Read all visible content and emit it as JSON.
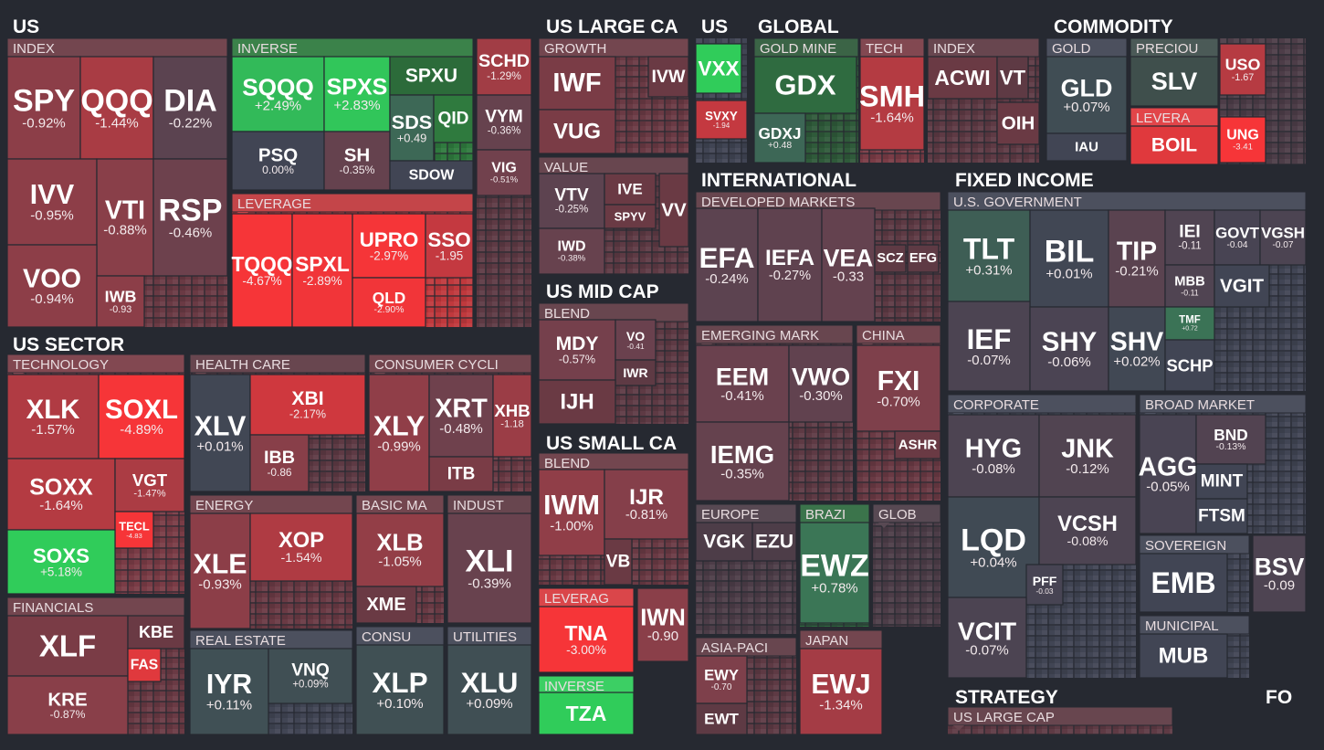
{
  "sections": [
    {
      "title": "US",
      "groups": [
        {
          "label": "INDEX",
          "tiles": [
            {
              "ticker": "SPY",
              "change": "-0.92%"
            },
            {
              "ticker": "QQQ",
              "change": "-1.44%"
            },
            {
              "ticker": "DIA",
              "change": "-0.22%"
            },
            {
              "ticker": "IVV",
              "change": "-0.95%"
            },
            {
              "ticker": "VTI",
              "change": "-0.88%"
            },
            {
              "ticker": "RSP",
              "change": "-0.46%"
            },
            {
              "ticker": "VOO",
              "change": "-0.94%"
            },
            {
              "ticker": "IWB",
              "change": "-0.93"
            }
          ]
        },
        {
          "label": "INVERSE",
          "tiles": [
            {
              "ticker": "SQQQ",
              "change": "+2.49%"
            },
            {
              "ticker": "SPXS",
              "change": "+2.83%"
            },
            {
              "ticker": "SPXU"
            },
            {
              "ticker": "PSQ",
              "change": "0.00%"
            },
            {
              "ticker": "SH",
              "change": "-0.35%"
            },
            {
              "ticker": "SDS",
              "change": "+0.49"
            },
            {
              "ticker": "QID"
            },
            {
              "ticker": "SDOW"
            }
          ]
        },
        {
          "label": "LEVERAGE",
          "tiles": [
            {
              "ticker": "TQQQ",
              "change": "-4.67%"
            },
            {
              "ticker": "SPXL",
              "change": "-2.89%"
            },
            {
              "ticker": "UPRO",
              "change": "-2.97%"
            },
            {
              "ticker": "SSO",
              "change": "-1.95"
            },
            {
              "ticker": "QLD",
              "change": "-2.90%"
            }
          ]
        },
        {
          "tiles": [
            {
              "ticker": "SCHD",
              "change": "-1.29%"
            },
            {
              "ticker": "VYM",
              "change": "-0.36%"
            },
            {
              "ticker": "VIG",
              "change": "-0.51%"
            }
          ]
        }
      ]
    },
    {
      "title": "US SECTOR",
      "groups": [
        {
          "label": "TECHNOLOGY",
          "tiles": [
            {
              "ticker": "XLK",
              "change": "-1.57%"
            },
            {
              "ticker": "SOXL",
              "change": "-4.89%"
            },
            {
              "ticker": "SOXX",
              "change": "-1.64%"
            },
            {
              "ticker": "VGT",
              "change": "-1.47%"
            },
            {
              "ticker": "TECL",
              "change": "-4.83"
            },
            {
              "ticker": "SOXS",
              "change": "+5.18%"
            }
          ]
        },
        {
          "label": "FINANCIALS",
          "tiles": [
            {
              "ticker": "XLF"
            },
            {
              "ticker": "KRE",
              "change": "-0.87%"
            },
            {
              "ticker": "KBE"
            },
            {
              "ticker": "FAS"
            }
          ]
        },
        {
          "label": "HEALTH CARE",
          "tiles": [
            {
              "ticker": "XLV",
              "change": "+0.01%"
            },
            {
              "ticker": "XBI",
              "change": "-2.17%"
            },
            {
              "ticker": "IBB",
              "change": "-0.86"
            }
          ]
        },
        {
          "label": "CONSUMER CYCLI",
          "tiles": [
            {
              "ticker": "XLY",
              "change": "-0.99%"
            },
            {
              "ticker": "XRT",
              "change": "-0.48%"
            },
            {
              "ticker": "XHB",
              "change": "-1.18"
            },
            {
              "ticker": "ITB"
            }
          ]
        },
        {
          "label": "ENERGY",
          "tiles": [
            {
              "ticker": "XLE",
              "change": "-0.93%"
            },
            {
              "ticker": "XOP",
              "change": "-1.54%"
            }
          ]
        },
        {
          "label": "BASIC MA",
          "tiles": [
            {
              "ticker": "XLB",
              "change": "-1.05%"
            },
            {
              "ticker": "XME"
            }
          ]
        },
        {
          "label": "INDUST",
          "tiles": [
            {
              "ticker": "XLI",
              "change": "-0.39%"
            }
          ]
        },
        {
          "label": "REAL ESTATE",
          "tiles": [
            {
              "ticker": "IYR",
              "change": "+0.11%"
            },
            {
              "ticker": "VNQ",
              "change": "+0.09%"
            }
          ]
        },
        {
          "label": "CONSU",
          "tiles": [
            {
              "ticker": "XLP",
              "change": "+0.10%"
            }
          ]
        },
        {
          "label": "UTILITIES",
          "tiles": [
            {
              "ticker": "XLU",
              "change": "+0.09%"
            }
          ]
        }
      ]
    },
    {
      "title": "US LARGE CA",
      "groups": [
        {
          "label": "GROWTH",
          "tiles": [
            {
              "ticker": "IWF"
            },
            {
              "ticker": "VUG"
            },
            {
              "ticker": "IVW"
            }
          ]
        },
        {
          "label": "VALUE",
          "tiles": [
            {
              "ticker": "VTV",
              "change": "-0.25%"
            },
            {
              "ticker": "IVE"
            },
            {
              "ticker": "SPYV"
            },
            {
              "ticker": "VV"
            },
            {
              "ticker": "IWD",
              "change": "-0.38%"
            }
          ]
        }
      ]
    },
    {
      "title": "US MID CAP",
      "groups": [
        {
          "label": "BLEND",
          "tiles": [
            {
              "ticker": "MDY",
              "change": "-0.57%"
            },
            {
              "ticker": "VO",
              "change": "-0.41"
            },
            {
              "ticker": "IWR"
            },
            {
              "ticker": "IJH"
            }
          ]
        }
      ]
    },
    {
      "title": "US SMALL CA",
      "groups": [
        {
          "label": "BLEND",
          "tiles": [
            {
              "ticker": "IWM",
              "change": "-1.00%"
            },
            {
              "ticker": "IJR",
              "change": "-0.81%"
            },
            {
              "ticker": "VB"
            }
          ]
        },
        {
          "label": "LEVERAG",
          "tiles": [
            {
              "ticker": "TNA",
              "change": "-3.00%"
            }
          ]
        },
        {
          "tiles": [
            {
              "ticker": "IWN",
              "change": "-0.90"
            }
          ]
        },
        {
          "label": "INVERSE",
          "tiles": [
            {
              "ticker": "TZA"
            }
          ]
        }
      ]
    },
    {
      "title": "US",
      "groups": [
        {
          "tiles": [
            {
              "ticker": "VXX"
            },
            {
              "ticker": "SVXY",
              "change": "-1.94"
            }
          ]
        }
      ]
    },
    {
      "title": "GLOBAL",
      "groups": [
        {
          "label": "GOLD MINE",
          "tiles": [
            {
              "ticker": "GDX"
            },
            {
              "ticker": "GDXJ",
              "change": "+0.48"
            }
          ]
        },
        {
          "label": "TECH",
          "tiles": [
            {
              "ticker": "SMH",
              "change": "-1.64%"
            }
          ]
        },
        {
          "label": "INDEX",
          "tiles": [
            {
              "ticker": "ACWI"
            },
            {
              "ticker": "VT"
            },
            {
              "ticker": "OIH"
            }
          ]
        }
      ]
    },
    {
      "title": "INTERNATIONAL",
      "groups": [
        {
          "label": "DEVELOPED MARKETS",
          "tiles": [
            {
              "ticker": "EFA",
              "change": "-0.24%"
            },
            {
              "ticker": "IEFA",
              "change": "-0.27%"
            },
            {
              "ticker": "VEA",
              "change": "-0.33"
            },
            {
              "ticker": "SCZ"
            },
            {
              "ticker": "EFG"
            }
          ]
        },
        {
          "label": "EMERGING MARK",
          "tiles": [
            {
              "ticker": "EEM",
              "change": "-0.41%"
            },
            {
              "ticker": "VWO",
              "change": "-0.30%"
            },
            {
              "ticker": "IEMG",
              "change": "-0.35%"
            }
          ]
        },
        {
          "label": "CHINA",
          "tiles": [
            {
              "ticker": "FXI",
              "change": "-0.70%"
            },
            {
              "ticker": "ASHR"
            }
          ]
        },
        {
          "label": "EUROPE",
          "tiles": [
            {
              "ticker": "VGK"
            },
            {
              "ticker": "EZU"
            }
          ]
        },
        {
          "label": "BRAZI",
          "tiles": [
            {
              "ticker": "EWZ",
              "change": "+0.78%"
            }
          ]
        },
        {
          "label": "GLOB",
          "tiles": []
        },
        {
          "label": "ASIA-PACI",
          "tiles": [
            {
              "ticker": "EWY",
              "change": "-0.70"
            },
            {
              "ticker": "EWT"
            }
          ]
        },
        {
          "label": "JAPAN",
          "tiles": [
            {
              "ticker": "EWJ",
              "change": "-1.34%"
            }
          ]
        }
      ]
    },
    {
      "title": "COMMODITY",
      "groups": [
        {
          "label": "GOLD",
          "tiles": [
            {
              "ticker": "GLD",
              "change": "+0.07%"
            },
            {
              "ticker": "IAU"
            }
          ]
        },
        {
          "label": "PRECIOU",
          "tiles": [
            {
              "ticker": "SLV"
            }
          ]
        },
        {
          "label": "LEVERA",
          "tiles": [
            {
              "ticker": "BOIL"
            }
          ]
        },
        {
          "tiles": [
            {
              "ticker": "USO",
              "change": "-1.67"
            },
            {
              "ticker": "UNG",
              "change": "-3.41"
            }
          ]
        }
      ]
    },
    {
      "title": "FIXED INCOME",
      "groups": [
        {
          "label": "U.S. GOVERNMENT",
          "tiles": [
            {
              "ticker": "TLT",
              "change": "+0.31%"
            },
            {
              "ticker": "BIL",
              "change": "+0.01%"
            },
            {
              "ticker": "TIP",
              "change": "-0.21%"
            },
            {
              "ticker": "IEI",
              "change": "-0.11"
            },
            {
              "ticker": "GOVT",
              "change": "-0.04"
            },
            {
              "ticker": "VGSH",
              "change": "-0.07"
            },
            {
              "ticker": "MBB",
              "change": "-0.11"
            },
            {
              "ticker": "VGIT"
            },
            {
              "ticker": "IEF",
              "change": "-0.07%"
            },
            {
              "ticker": "SHY",
              "change": "-0.06%"
            },
            {
              "ticker": "SHV",
              "change": "+0.02%"
            },
            {
              "ticker": "TMF",
              "change": "+0.72"
            },
            {
              "ticker": "SCHP"
            }
          ]
        },
        {
          "label": "CORPORATE",
          "tiles": [
            {
              "ticker": "HYG",
              "change": "-0.08%"
            },
            {
              "ticker": "JNK",
              "change": "-0.12%"
            },
            {
              "ticker": "LQD",
              "change": "+0.04%"
            },
            {
              "ticker": "VCSH",
              "change": "-0.08%"
            },
            {
              "ticker": "PFF",
              "change": "-0.03"
            },
            {
              "ticker": "VCIT",
              "change": "-0.07%"
            }
          ]
        },
        {
          "label": "BROAD MARKET",
          "tiles": [
            {
              "ticker": "AGG",
              "change": "-0.05%"
            },
            {
              "ticker": "BND",
              "change": "-0.13%"
            },
            {
              "ticker": "MINT"
            },
            {
              "ticker": "FTSM"
            }
          ]
        },
        {
          "label": "SOVEREIGN",
          "tiles": [
            {
              "ticker": "EMB"
            }
          ]
        },
        {
          "tiles": [
            {
              "ticker": "BSV",
              "change": "-0.09"
            }
          ]
        },
        {
          "label": "MUNICIPAL",
          "tiles": [
            {
              "ticker": "MUB"
            }
          ]
        }
      ]
    },
    {
      "title": "STRATEGY",
      "groups": [
        {
          "label": "US LARGE CAP",
          "tiles": []
        }
      ]
    },
    {
      "title": "FO",
      "groups": []
    }
  ]
}
